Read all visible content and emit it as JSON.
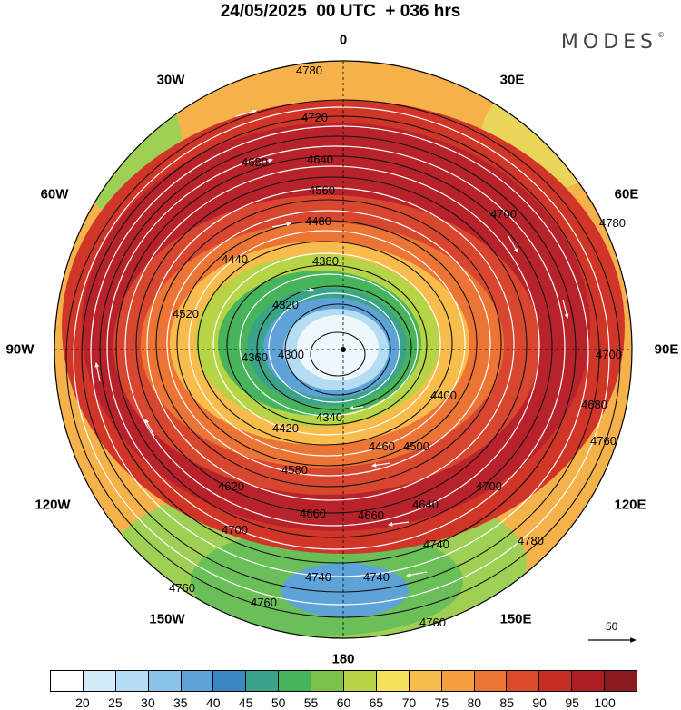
{
  "title": "24/05/2025  00 UTC  + 036 hrs",
  "brand": "MODES",
  "brand_mark": "©",
  "longitude_labels": [
    {
      "key": "0",
      "text": "0"
    },
    {
      "key": "30W",
      "text": "30W"
    },
    {
      "key": "30E",
      "text": "30E"
    },
    {
      "key": "60W",
      "text": "60W"
    },
    {
      "key": "60E",
      "text": "60E"
    },
    {
      "key": "90W",
      "text": "90W"
    },
    {
      "key": "90E",
      "text": "90E"
    },
    {
      "key": "120W",
      "text": "120W"
    },
    {
      "key": "120E",
      "text": "120E"
    },
    {
      "key": "150W",
      "text": "150W"
    },
    {
      "key": "150E",
      "text": "150E"
    },
    {
      "key": "180",
      "text": "180"
    }
  ],
  "contour_labels": [
    "4780",
    "4720",
    "4680",
    "4640",
    "4600",
    "4560",
    "4480",
    "4440",
    "4380",
    "4400",
    "4320",
    "4300",
    "4360",
    "4340",
    "4420",
    "4460",
    "4500",
    "4520",
    "4580",
    "4620",
    "4660",
    "4700",
    "4740",
    "4760"
  ],
  "reference_vector_label": "50",
  "colorbar": {
    "colors": [
      "#ffffff",
      "#d2ecfa",
      "#b4dcf3",
      "#8cc3e8",
      "#5ea3d8",
      "#3c86c3",
      "#3aa38a",
      "#47b35a",
      "#7cc24a",
      "#b7d446",
      "#f7e05c",
      "#f8bc4c",
      "#f49e3f",
      "#ec7535",
      "#dc4a2a",
      "#c82d25",
      "#ad1e22",
      "#8c1a1e"
    ],
    "tick_labels": [
      "20",
      "25",
      "30",
      "35",
      "40",
      "45",
      "50",
      "55",
      "60",
      "65",
      "70",
      "75",
      "80",
      "85",
      "90",
      "95",
      "100"
    ]
  }
}
